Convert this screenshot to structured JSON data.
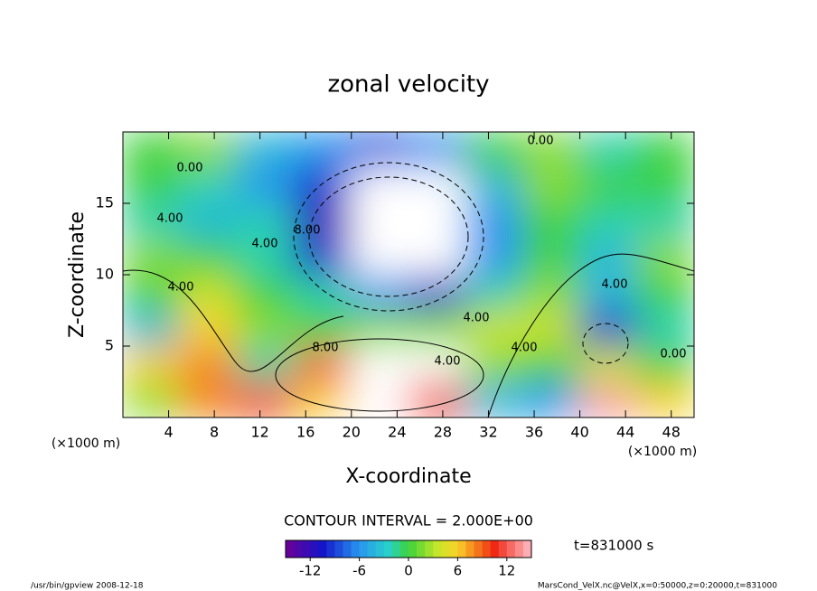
{
  "chart_data": {
    "type": "contour",
    "title": "zonal velocity",
    "x_label": "X-coordinate",
    "y_label": "Z-coordinate",
    "x_unit": "(×1000 m)",
    "y_unit": "(×1000 m)",
    "x": [
      2.5,
      7.5,
      12.5,
      17.5,
      22.5,
      27.5,
      32.5,
      37.5,
      42.5,
      47.5
    ],
    "z": [
      1.25,
      3.75,
      6.25,
      8.75,
      11.25,
      13.75,
      16.25,
      18.75
    ],
    "values": [
      [
        2,
        8,
        10,
        6,
        18,
        10,
        -4,
        -6,
        14,
        6
      ],
      [
        6,
        8,
        -2,
        12,
        18,
        16,
        2,
        0,
        4,
        0
      ],
      [
        -4,
        6,
        2,
        0,
        2,
        2,
        4,
        4,
        -10,
        -2
      ],
      [
        0,
        4,
        0,
        -2,
        -6,
        -10,
        -2,
        2,
        -4,
        0
      ],
      [
        2,
        0,
        -2,
        -10,
        -16,
        -16,
        -6,
        0,
        -4,
        2
      ],
      [
        -2,
        -4,
        -2,
        -12,
        -20,
        -18,
        -6,
        0,
        -2,
        -2
      ],
      [
        0,
        -2,
        -6,
        -10,
        -18,
        -18,
        -4,
        2,
        0,
        0
      ],
      [
        0,
        2,
        -4,
        -6,
        -8,
        -6,
        0,
        2,
        -2,
        0
      ]
    ],
    "xlim": [
      0,
      50
    ],
    "xticks": [
      4,
      8,
      12,
      16,
      20,
      24,
      28,
      32,
      36,
      40,
      44,
      48
    ],
    "ylim": [
      0,
      20
    ],
    "yticks": [
      5,
      10,
      15
    ],
    "clim": [
      -15,
      15
    ],
    "cticks": [
      -12,
      -6,
      0,
      6,
      12
    ],
    "contour_labels": [
      "0.00",
      "4.00",
      "4.00",
      "4.00",
      "8.00",
      "8.00",
      "4.00",
      "4.00",
      "4.00",
      "0.00",
      "4.00",
      "0.00"
    ],
    "contour_interval": "CONTOUR INTERVAL = 2.000E+00",
    "time_label": "t=831000 s",
    "footer_left": "/usr/bin/gpview  2008-12-18",
    "footer_right": "MarsCond_VelX.nc@VelX,x=0:50000,z=0:20000,t=831000"
  }
}
